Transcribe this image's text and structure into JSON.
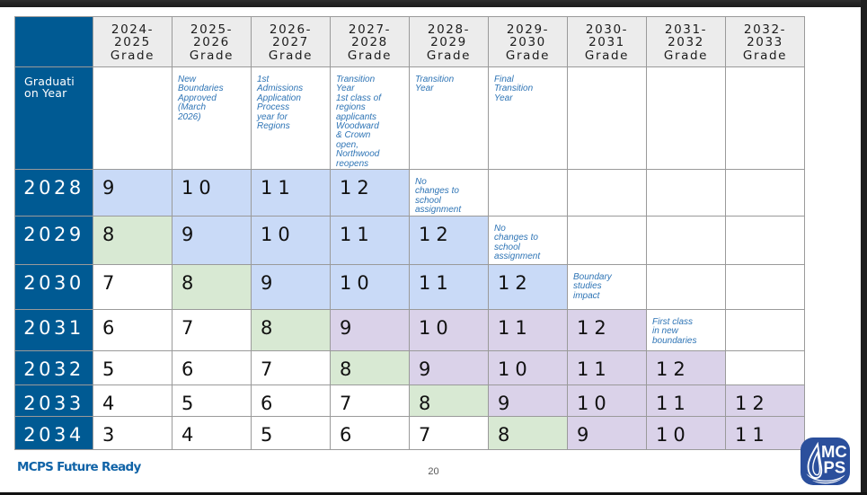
{
  "colors": {
    "header_navy": "#005A93",
    "grid_line": "#9a9a9a",
    "column_header_bg": "#ececec",
    "cell_blue": "#C9DAF7",
    "cell_green": "#D8E9D3",
    "cell_purple": "#DAD2E9",
    "note_blue": "#2E74B5",
    "footer_brand_blue": "#1063A7",
    "logo_blue": "#2B4F9C",
    "letterbox_black": "#232323"
  },
  "table": {
    "columns": [
      {
        "label": "2024-\n2025\nGrade"
      },
      {
        "label": "2025-\n2026\nGrade"
      },
      {
        "label": "2026-\n2027\nGrade"
      },
      {
        "label": "2027-\n2028\nGrade"
      },
      {
        "label": "2028-\n2029\nGrade"
      },
      {
        "label": "2029-\n2030\nGrade"
      },
      {
        "label": "2030-\n2031\nGrade"
      },
      {
        "label": "2031-\n2032\nGrade"
      },
      {
        "label": "2032-\n2033\nGrade"
      }
    ],
    "row_header": {
      "label": "Graduati\non Year",
      "notes": [
        "",
        "New\nBoundaries\nApproved\n(March\n2026)",
        "1st\nAdmissions\nApplication\nProcess\nyear for\nRegions",
        "Transition\nYear\n1st class of\nregions\napplicants\nWoodward\n& Crown\nopen,\nNorthwood\nreopens",
        "Transition\nYear",
        "Final\nTransition\nYear",
        "",
        "",
        ""
      ]
    },
    "rows": [
      {
        "year": "2028",
        "cells": [
          {
            "text": "9",
            "bg": "blue"
          },
          {
            "text": "10",
            "bg": "blue"
          },
          {
            "text": "11",
            "bg": "blue"
          },
          {
            "text": "12",
            "bg": "blue"
          },
          {
            "note": "No\nchanges to\nschool\nassignment"
          },
          {},
          {},
          {},
          {}
        ]
      },
      {
        "year": "2029",
        "cells": [
          {
            "text": "8",
            "bg": "green"
          },
          {
            "text": "9",
            "bg": "blue"
          },
          {
            "text": "10",
            "bg": "blue"
          },
          {
            "text": "11",
            "bg": "blue"
          },
          {
            "text": "12",
            "bg": "blue"
          },
          {
            "note": "No\nchanges to\nschool\nassignment"
          },
          {},
          {},
          {}
        ]
      },
      {
        "year": "2030",
        "cells": [
          {
            "text": "7",
            "bg": "white"
          },
          {
            "text": "8",
            "bg": "green"
          },
          {
            "text": "9",
            "bg": "blue"
          },
          {
            "text": "10",
            "bg": "blue"
          },
          {
            "text": "11",
            "bg": "blue"
          },
          {
            "text": "12",
            "bg": "blue"
          },
          {
            "note": "Boundary\nstudies\nimpact"
          },
          {},
          {}
        ]
      },
      {
        "year": "2031",
        "cells": [
          {
            "text": "6",
            "bg": "white"
          },
          {
            "text": "7",
            "bg": "white"
          },
          {
            "text": "8",
            "bg": "green"
          },
          {
            "text": "9",
            "bg": "purple"
          },
          {
            "text": "10",
            "bg": "purple"
          },
          {
            "text": "11",
            "bg": "purple"
          },
          {
            "text": "12",
            "bg": "purple"
          },
          {
            "note": "First class\nin new\nboundaries"
          },
          {}
        ]
      },
      {
        "year": "2032",
        "cells": [
          {
            "text": "5",
            "bg": "white"
          },
          {
            "text": "6",
            "bg": "white"
          },
          {
            "text": "7",
            "bg": "white"
          },
          {
            "text": "8",
            "bg": "green"
          },
          {
            "text": "9",
            "bg": "purple"
          },
          {
            "text": "10",
            "bg": "purple"
          },
          {
            "text": "11",
            "bg": "purple"
          },
          {
            "text": "12",
            "bg": "purple"
          },
          {}
        ]
      },
      {
        "year": "2033",
        "cells": [
          {
            "text": "4",
            "bg": "white"
          },
          {
            "text": "5",
            "bg": "white"
          },
          {
            "text": "6",
            "bg": "white"
          },
          {
            "text": "7",
            "bg": "white"
          },
          {
            "text": "8",
            "bg": "green"
          },
          {
            "text": "9",
            "bg": "purple"
          },
          {
            "text": "10",
            "bg": "purple"
          },
          {
            "text": "11",
            "bg": "purple"
          },
          {
            "text": "12",
            "bg": "purple"
          }
        ]
      },
      {
        "year": "2034",
        "cells": [
          {
            "text": "3",
            "bg": "white"
          },
          {
            "text": "4",
            "bg": "white"
          },
          {
            "text": "5",
            "bg": "white"
          },
          {
            "text": "6",
            "bg": "white"
          },
          {
            "text": "7",
            "bg": "white"
          },
          {
            "text": "8",
            "bg": "green"
          },
          {
            "text": "9",
            "bg": "purple"
          },
          {
            "text": "10",
            "bg": "purple"
          },
          {
            "text": "11",
            "bg": "purple"
          }
        ]
      }
    ],
    "layout": {
      "header_row_height": 56,
      "notes_row_height": 112,
      "year_row_heights": [
        52,
        54,
        50,
        46,
        38,
        35,
        37
      ],
      "left_col_width": 87,
      "data_col_width": 88
    }
  },
  "footer": {
    "brand": "MCPS Future Ready",
    "page_number": "20"
  },
  "logo": {
    "line1": "MC",
    "line2": "PS"
  }
}
